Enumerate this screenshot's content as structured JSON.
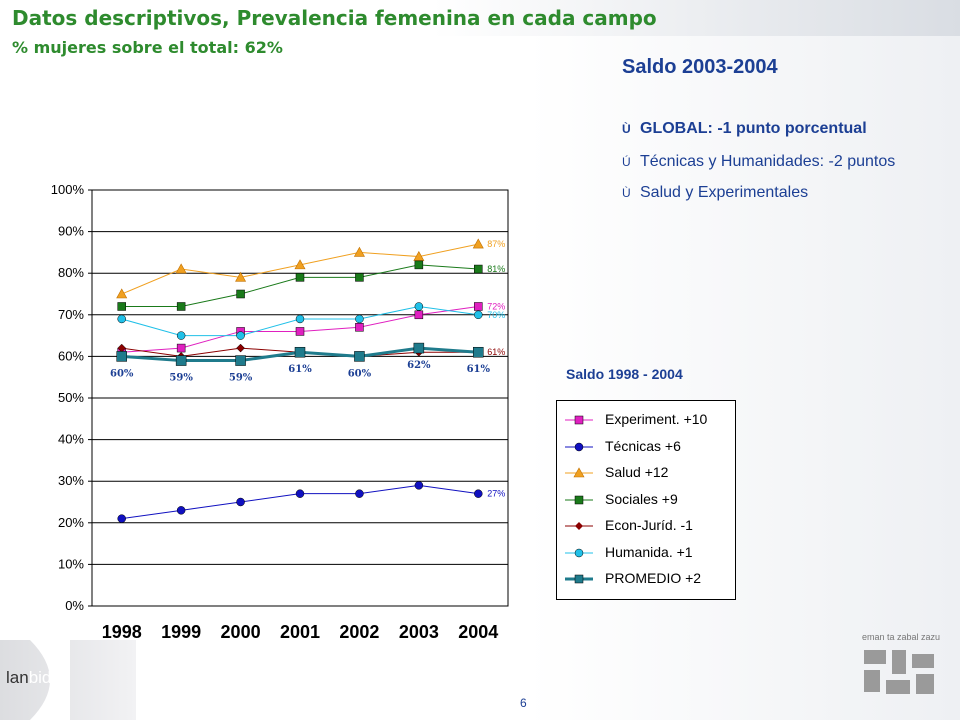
{
  "header": {
    "title": "Datos descriptivos, Prevalencia femenina en cada campo",
    "subtitle": "% mujeres sobre el total: 62%"
  },
  "summary": {
    "title": "Saldo 2003-2004",
    "bullets": [
      {
        "marker": "Ù",
        "text": "GLOBAL: -1 punto porcentual"
      },
      {
        "marker": "Ú",
        "text": "Técnicas y Humanidades:  -2 puntos"
      },
      {
        "marker": "Ù",
        "text": "Salud y Experimentales"
      }
    ],
    "range_title": "Saldo 1998 - 2004"
  },
  "chart_data": {
    "type": "line",
    "x": [
      "1998",
      "1999",
      "2000",
      "2001",
      "2002",
      "2003",
      "2004"
    ],
    "ylim": [
      0,
      100
    ],
    "y_ticks": [
      "0%",
      "10%",
      "20%",
      "30%",
      "40%",
      "50%",
      "60%",
      "70%",
      "80%",
      "90%",
      "100%"
    ],
    "grid": true,
    "legend_position": "right",
    "series": [
      {
        "name": "Experiment. +10",
        "color": "#e020c0",
        "marker": "square",
        "values": [
          61,
          62,
          66,
          66,
          67,
          70,
          72
        ],
        "end_label": "72%"
      },
      {
        "name": "Técnicas +6",
        "color": "#1010c0",
        "marker": "circle",
        "values": [
          21,
          23,
          25,
          27,
          27,
          29,
          27
        ],
        "end_label": "27%"
      },
      {
        "name": "Salud +12",
        "color": "#f0a020",
        "marker": "triangle",
        "values": [
          75,
          81,
          79,
          82,
          85,
          84,
          87
        ],
        "end_label": "87%"
      },
      {
        "name": "Sociales +9",
        "color": "#1a7a1a",
        "marker": "square",
        "values": [
          72,
          72,
          75,
          79,
          79,
          82,
          81
        ],
        "end_label": "81%"
      },
      {
        "name": "Econ-Juríd. -1",
        "color": "#8b0000",
        "marker": "diamond",
        "values": [
          62,
          60,
          62,
          61,
          60,
          61,
          61
        ],
        "end_label": "61%"
      },
      {
        "name": "Humanida. +1",
        "color": "#20c0e8",
        "marker": "circle",
        "values": [
          69,
          65,
          65,
          69,
          69,
          72,
          70
        ],
        "end_label": "70%"
      },
      {
        "name": "PROMEDIO +2",
        "color": "#1f7b8c",
        "marker": "square",
        "values": [
          60,
          59,
          59,
          61,
          60,
          62,
          61
        ],
        "point_labels": [
          "60%",
          "59%",
          "59%",
          "61%",
          "60%",
          "62%",
          "61%"
        ]
      }
    ]
  },
  "footer": {
    "logo_prefix": "lan",
    "logo_suffix": "bide",
    "page_number": "6",
    "emblem_caption": "eman ta zabal zazu"
  }
}
